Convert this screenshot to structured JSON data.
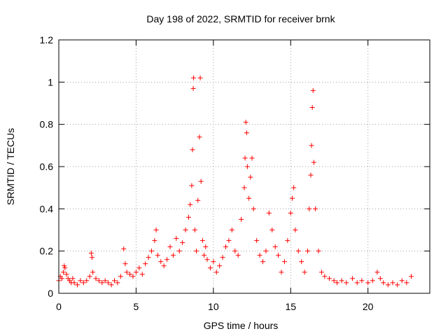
{
  "chart_data": {
    "type": "scatter",
    "title": "Day 198 of 2022, SRMTID for receiver brnk",
    "xlabel": "GPS time / hours",
    "ylabel": "SRMTID / TECUs",
    "xlim": [
      0,
      24
    ],
    "ylim": [
      0,
      1.2
    ],
    "grid": true,
    "marker": "+",
    "color": "#ff0000",
    "x_ticks": [
      0,
      5,
      10,
      15,
      20
    ],
    "x_tick_labels": [
      "0",
      "5",
      "10",
      "15",
      "20"
    ],
    "y_ticks": [
      0,
      0.2,
      0.4,
      0.6,
      0.8,
      1.0,
      1.2
    ],
    "y_tick_labels": [
      "0",
      "0.2",
      "0.4",
      "0.6",
      "0.8",
      "1",
      "1.2"
    ],
    "x_range_data": [
      0.0,
      22.8
    ],
    "series": [
      {
        "name": "SRMTID",
        "points": [
          [
            0.0,
            0.06
          ],
          [
            0.1,
            0.08
          ],
          [
            0.2,
            0.07
          ],
          [
            0.3,
            0.1
          ],
          [
            0.35,
            0.13
          ],
          [
            0.4,
            0.12
          ],
          [
            0.5,
            0.09
          ],
          [
            0.6,
            0.07
          ],
          [
            0.7,
            0.06
          ],
          [
            0.8,
            0.05
          ],
          [
            0.9,
            0.07
          ],
          [
            1.0,
            0.05
          ],
          [
            1.2,
            0.04
          ],
          [
            1.4,
            0.06
          ],
          [
            1.6,
            0.05
          ],
          [
            1.8,
            0.06
          ],
          [
            2.0,
            0.08
          ],
          [
            2.1,
            0.19
          ],
          [
            2.15,
            0.17
          ],
          [
            2.2,
            0.1
          ],
          [
            2.4,
            0.07
          ],
          [
            2.6,
            0.06
          ],
          [
            2.8,
            0.05
          ],
          [
            3.0,
            0.06
          ],
          [
            3.2,
            0.05
          ],
          [
            3.4,
            0.04
          ],
          [
            3.6,
            0.06
          ],
          [
            3.8,
            0.05
          ],
          [
            4.0,
            0.08
          ],
          [
            4.2,
            0.21
          ],
          [
            4.3,
            0.14
          ],
          [
            4.4,
            0.1
          ],
          [
            4.6,
            0.09
          ],
          [
            4.8,
            0.08
          ],
          [
            5.0,
            0.1
          ],
          [
            5.2,
            0.12
          ],
          [
            5.4,
            0.09
          ],
          [
            5.6,
            0.14
          ],
          [
            5.8,
            0.17
          ],
          [
            6.0,
            0.2
          ],
          [
            6.2,
            0.25
          ],
          [
            6.3,
            0.3
          ],
          [
            6.4,
            0.18
          ],
          [
            6.6,
            0.15
          ],
          [
            6.8,
            0.13
          ],
          [
            7.0,
            0.16
          ],
          [
            7.2,
            0.22
          ],
          [
            7.4,
            0.18
          ],
          [
            7.6,
            0.26
          ],
          [
            7.8,
            0.2
          ],
          [
            8.0,
            0.24
          ],
          [
            8.2,
            0.3
          ],
          [
            8.4,
            0.36
          ],
          [
            8.5,
            0.42
          ],
          [
            8.6,
            0.51
          ],
          [
            8.65,
            0.68
          ],
          [
            8.7,
            0.97
          ],
          [
            8.72,
            1.02
          ],
          [
            8.8,
            0.3
          ],
          [
            8.9,
            0.2
          ],
          [
            9.0,
            0.44
          ],
          [
            9.1,
            0.74
          ],
          [
            9.15,
            1.02
          ],
          [
            9.2,
            0.53
          ],
          [
            9.3,
            0.25
          ],
          [
            9.4,
            0.18
          ],
          [
            9.5,
            0.22
          ],
          [
            9.6,
            0.16
          ],
          [
            9.8,
            0.12
          ],
          [
            10.0,
            0.15
          ],
          [
            10.2,
            0.1
          ],
          [
            10.4,
            0.13
          ],
          [
            10.6,
            0.17
          ],
          [
            10.8,
            0.22
          ],
          [
            11.0,
            0.25
          ],
          [
            11.2,
            0.3
          ],
          [
            11.4,
            0.2
          ],
          [
            11.6,
            0.18
          ],
          [
            11.8,
            0.35
          ],
          [
            12.0,
            0.5
          ],
          [
            12.05,
            0.64
          ],
          [
            12.1,
            0.81
          ],
          [
            12.15,
            0.76
          ],
          [
            12.2,
            0.6
          ],
          [
            12.3,
            0.45
          ],
          [
            12.4,
            0.55
          ],
          [
            12.5,
            0.64
          ],
          [
            12.6,
            0.4
          ],
          [
            12.8,
            0.25
          ],
          [
            13.0,
            0.18
          ],
          [
            13.2,
            0.15
          ],
          [
            13.4,
            0.2
          ],
          [
            13.6,
            0.38
          ],
          [
            13.8,
            0.3
          ],
          [
            14.0,
            0.22
          ],
          [
            14.2,
            0.18
          ],
          [
            14.4,
            0.1
          ],
          [
            14.6,
            0.15
          ],
          [
            14.8,
            0.25
          ],
          [
            15.0,
            0.38
          ],
          [
            15.1,
            0.45
          ],
          [
            15.2,
            0.5
          ],
          [
            15.3,
            0.3
          ],
          [
            15.5,
            0.2
          ],
          [
            15.7,
            0.15
          ],
          [
            15.9,
            0.1
          ],
          [
            16.1,
            0.2
          ],
          [
            16.2,
            0.4
          ],
          [
            16.3,
            0.56
          ],
          [
            16.35,
            0.7
          ],
          [
            16.4,
            0.88
          ],
          [
            16.45,
            0.96
          ],
          [
            16.5,
            0.62
          ],
          [
            16.6,
            0.4
          ],
          [
            16.8,
            0.2
          ],
          [
            17.0,
            0.1
          ],
          [
            17.2,
            0.08
          ],
          [
            17.5,
            0.07
          ],
          [
            17.8,
            0.06
          ],
          [
            18.0,
            0.05
          ],
          [
            18.3,
            0.06
          ],
          [
            18.6,
            0.05
          ],
          [
            19.0,
            0.07
          ],
          [
            19.3,
            0.05
          ],
          [
            19.6,
            0.06
          ],
          [
            20.0,
            0.05
          ],
          [
            20.3,
            0.06
          ],
          [
            20.6,
            0.1
          ],
          [
            20.8,
            0.07
          ],
          [
            21.0,
            0.05
          ],
          [
            21.3,
            0.04
          ],
          [
            21.6,
            0.05
          ],
          [
            21.9,
            0.04
          ],
          [
            22.2,
            0.06
          ],
          [
            22.5,
            0.05
          ],
          [
            22.8,
            0.08
          ]
        ]
      }
    ]
  }
}
